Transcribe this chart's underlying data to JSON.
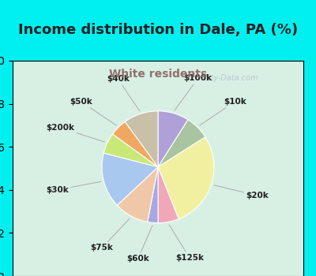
{
  "title": "Income distribution in Dale, PA (%)",
  "subtitle": "White residents",
  "labels": [
    "$100k",
    "$10k",
    "$20k",
    "$125k",
    "$60k",
    "$75k",
    "$30k",
    "$200k",
    "$50k",
    "$40k"
  ],
  "values": [
    9,
    7,
    28,
    6,
    3,
    10,
    16,
    6,
    5,
    10
  ],
  "colors": [
    "#b0a0d8",
    "#a8c4a0",
    "#f0f0a0",
    "#f0a8b8",
    "#a8a8e0",
    "#f0c8a8",
    "#a8c8f0",
    "#c8e878",
    "#f0a860",
    "#c8c0a8"
  ],
  "cyan_bg": "#00f0f0",
  "chart_bg_left": "#d0f0e0",
  "chart_bg_right": "#e8f4f8",
  "title_color": "#202020",
  "subtitle_color": "#907070",
  "label_color": "#202020",
  "startangle": 90,
  "label_font_size": 7.5,
  "title_font_size": 13,
  "subtitle_font_size": 10,
  "watermark": "City-Data.com"
}
